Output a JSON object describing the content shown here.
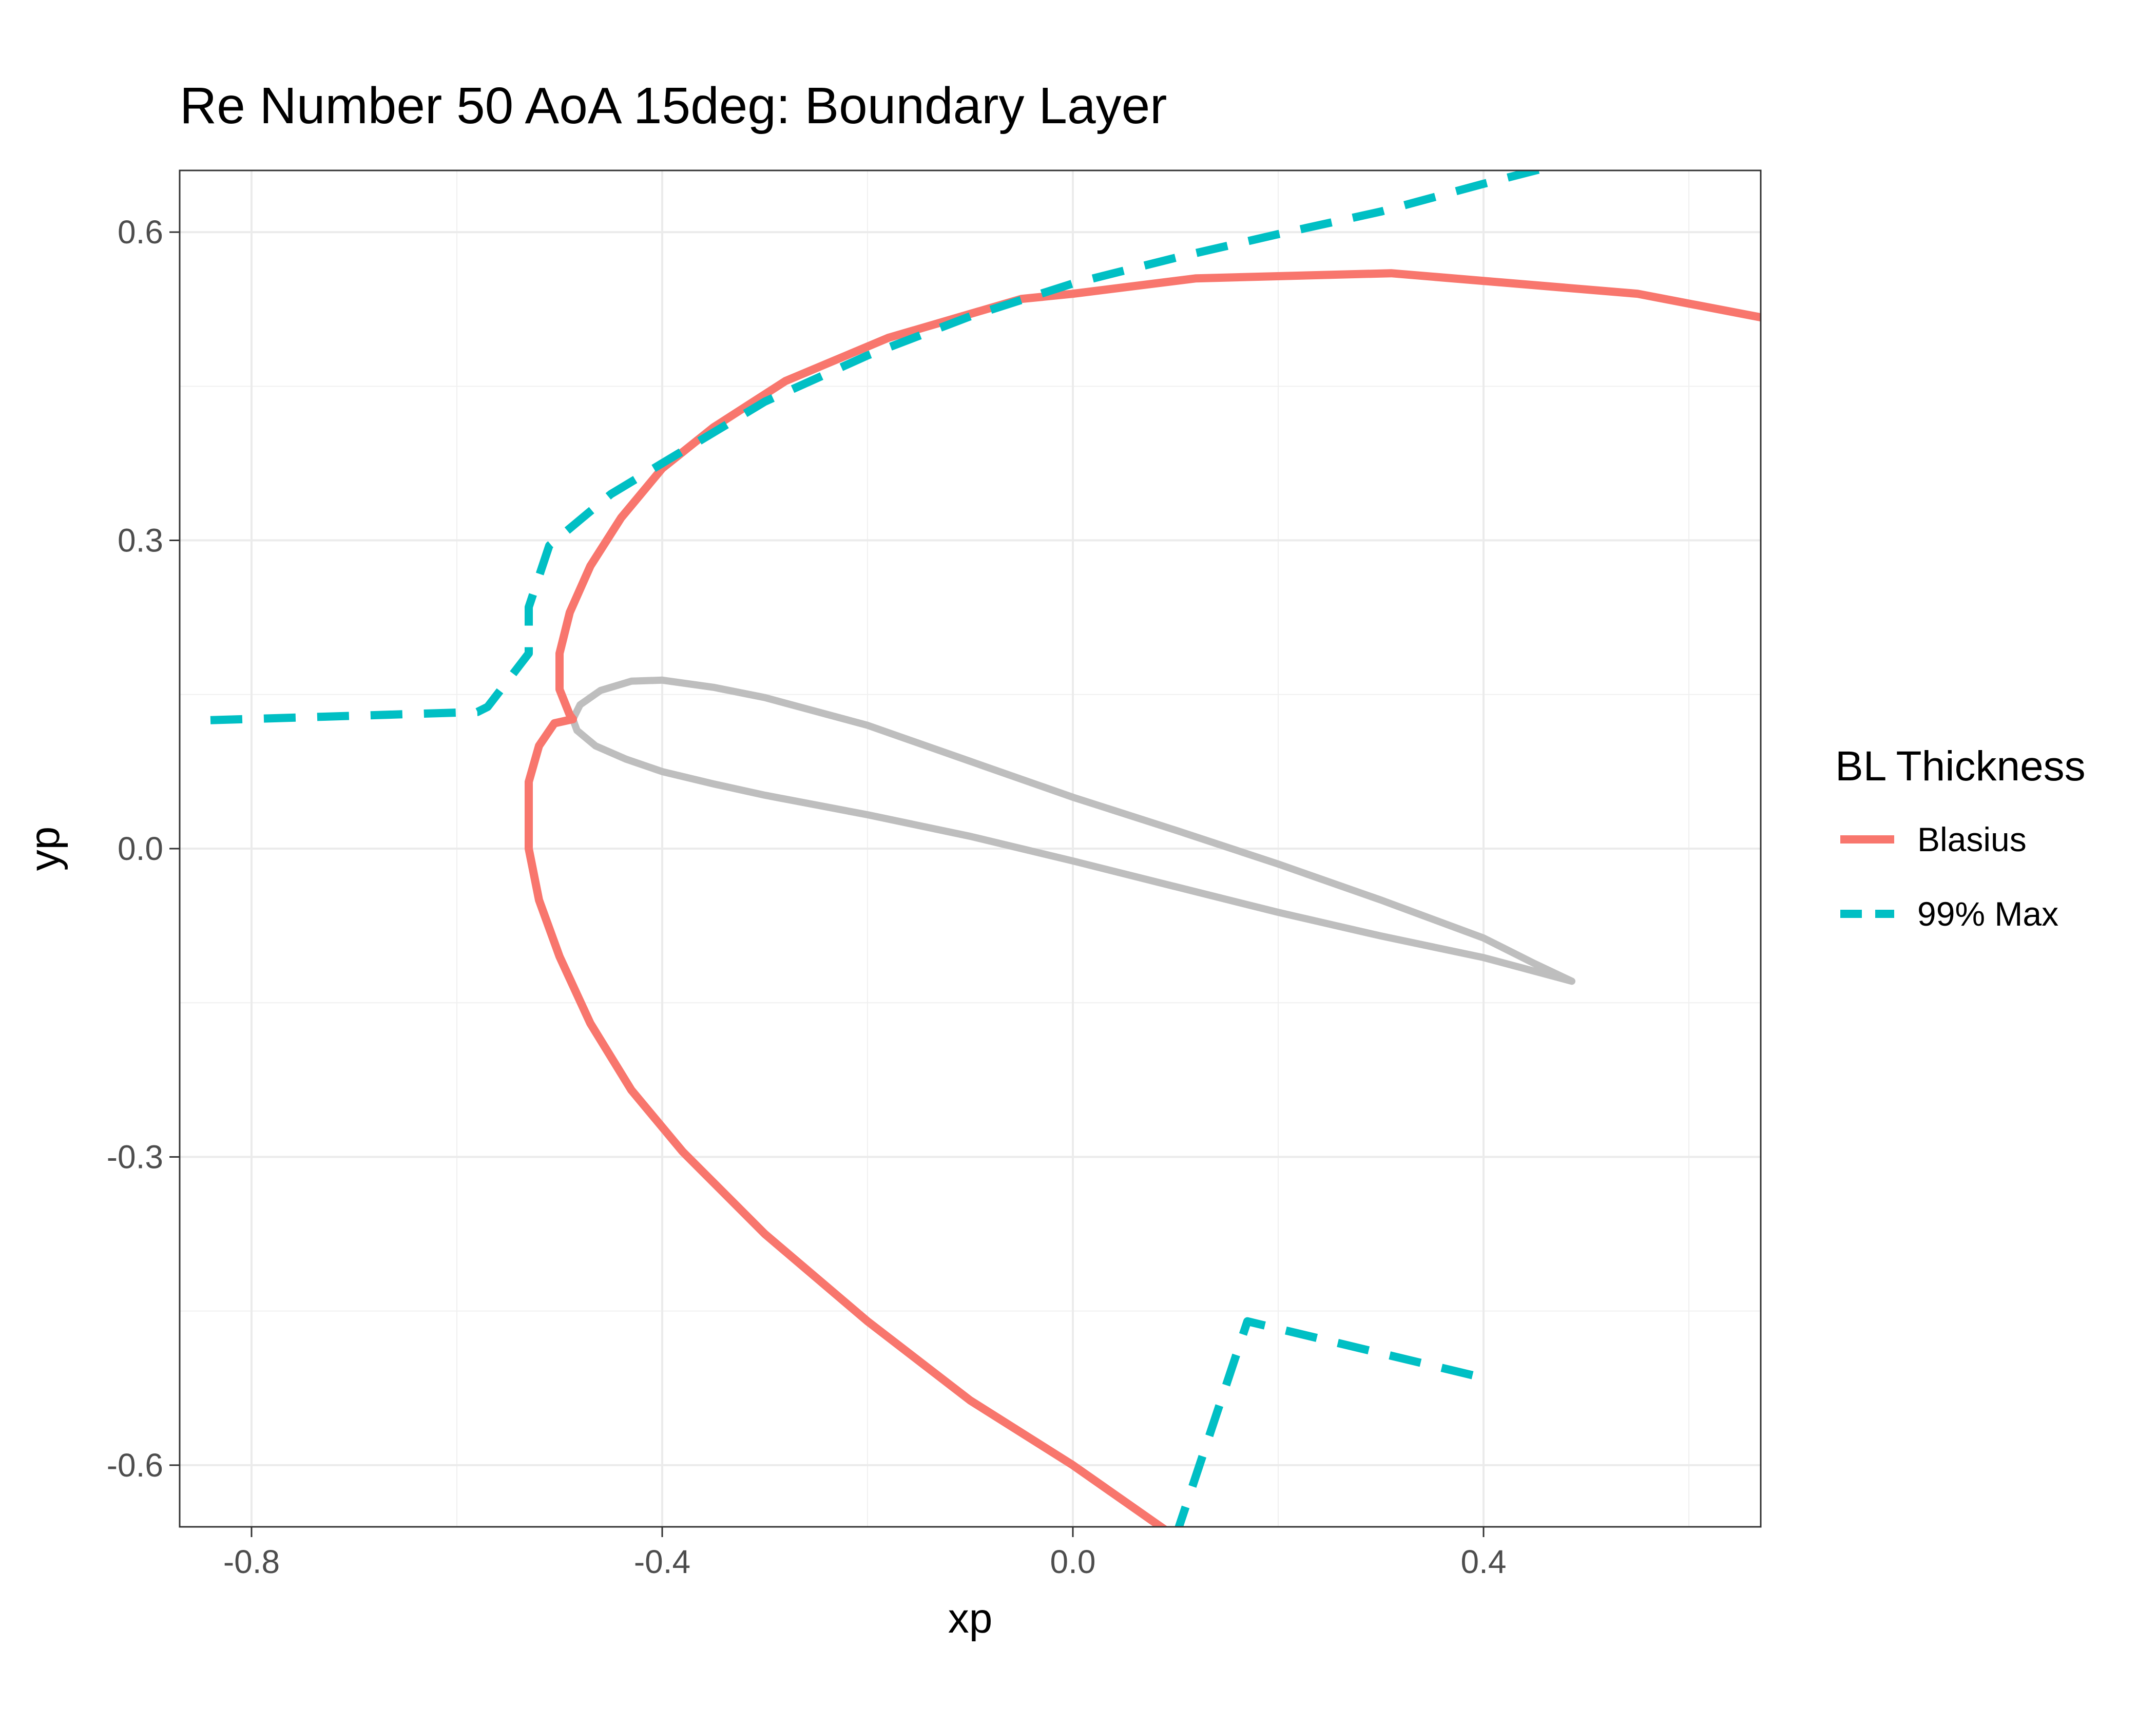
{
  "chart_data": {
    "type": "line",
    "title": "Re Number 50 AoA 15deg: Boundary Layer",
    "xlabel": "xp",
    "ylabel": "yp",
    "xlim": [
      -0.87,
      0.67
    ],
    "ylim": [
      -0.66,
      0.66
    ],
    "x_ticks": [
      -0.8,
      -0.4,
      0.0,
      0.4
    ],
    "x_tick_labels": [
      "-0.8",
      "-0.4",
      "0.0",
      "0.4"
    ],
    "y_ticks": [
      -0.6,
      -0.3,
      0.0,
      0.3,
      0.6
    ],
    "y_tick_labels": [
      "-0.6",
      "-0.3",
      "0.0",
      "0.3",
      "0.6"
    ],
    "grid": true,
    "legend": {
      "title": "BL Thickness",
      "position": "right",
      "entries": [
        {
          "label": "Blasius",
          "color": "#F8766D",
          "dash": "solid"
        },
        {
          "label": "99% Max",
          "color": "#00BFC4",
          "dash": "dashed"
        }
      ]
    },
    "airfoil": {
      "color": "#BEBEBE",
      "points": [
        [
          0.486,
          -0.129
        ],
        [
          0.45,
          -0.112
        ],
        [
          0.4,
          -0.087
        ],
        [
          0.3,
          -0.05
        ],
        [
          0.2,
          -0.015
        ],
        [
          0.1,
          0.018
        ],
        [
          0.0,
          0.05
        ],
        [
          -0.1,
          0.085
        ],
        [
          -0.2,
          0.12
        ],
        [
          -0.3,
          0.147
        ],
        [
          -0.35,
          0.157
        ],
        [
          -0.4,
          0.164
        ],
        [
          -0.43,
          0.163
        ],
        [
          -0.46,
          0.154
        ],
        [
          -0.48,
          0.14
        ],
        [
          -0.487,
          0.126
        ],
        [
          -0.483,
          0.115
        ],
        [
          -0.465,
          0.1
        ],
        [
          -0.435,
          0.087
        ],
        [
          -0.4,
          0.075
        ],
        [
          -0.35,
          0.063
        ],
        [
          -0.3,
          0.052
        ],
        [
          -0.2,
          0.033
        ],
        [
          -0.1,
          0.012
        ],
        [
          0.0,
          -0.012
        ],
        [
          0.1,
          -0.037
        ],
        [
          0.2,
          -0.062
        ],
        [
          0.3,
          -0.085
        ],
        [
          0.4,
          -0.106
        ],
        [
          0.486,
          -0.129
        ]
      ]
    },
    "series": [
      {
        "name": "Blasius",
        "color": "#F8766D",
        "dash": "solid",
        "segments": [
          [
            [
              0.67,
              0.517
            ],
            [
              0.55,
              0.54
            ],
            [
              0.31,
              0.56
            ],
            [
              0.12,
              0.555
            ],
            [
              0.0,
              0.54
            ],
            [
              -0.05,
              0.535
            ],
            [
              -0.18,
              0.497
            ],
            [
              -0.28,
              0.455
            ],
            [
              -0.35,
              0.41
            ],
            [
              -0.4,
              0.37
            ],
            [
              -0.44,
              0.322
            ],
            [
              -0.47,
              0.275
            ],
            [
              -0.49,
              0.23
            ],
            [
              -0.5,
              0.19
            ],
            [
              -0.5,
              0.155
            ],
            [
              -0.49,
              0.13
            ],
            [
              -0.487,
              0.126
            ]
          ],
          [
            [
              -0.487,
              0.126
            ],
            [
              -0.505,
              0.122
            ],
            [
              -0.52,
              0.1
            ],
            [
              -0.53,
              0.065
            ],
            [
              -0.53,
              0.0
            ],
            [
              -0.52,
              -0.05
            ],
            [
              -0.5,
              -0.105
            ],
            [
              -0.47,
              -0.17
            ],
            [
              -0.43,
              -0.235
            ],
            [
              -0.38,
              -0.295
            ],
            [
              -0.3,
              -0.375
            ],
            [
              -0.2,
              -0.46
            ],
            [
              -0.1,
              -0.537
            ],
            [
              0.0,
              -0.6
            ],
            [
              0.1,
              -0.67
            ]
          ]
        ]
      },
      {
        "name": "99% Max",
        "color": "#00BFC4",
        "dash": "dashed",
        "segments": [
          [
            [
              -0.84,
              0.125
            ],
            [
              -0.58,
              0.133
            ],
            [
              -0.57,
              0.138
            ],
            [
              -0.53,
              0.19
            ],
            [
              -0.53,
              0.235
            ],
            [
              -0.51,
              0.295
            ],
            [
              -0.48,
              0.32
            ],
            [
              -0.45,
              0.345
            ],
            [
              -0.4,
              0.375
            ],
            [
              -0.35,
              0.405
            ],
            [
              -0.3,
              0.435
            ],
            [
              -0.2,
              0.48
            ],
            [
              -0.1,
              0.518
            ],
            [
              0.0,
              0.55
            ],
            [
              0.1,
              0.575
            ],
            [
              0.2,
              0.598
            ],
            [
              0.3,
              0.62
            ],
            [
              0.4,
              0.647
            ],
            [
              0.47,
              0.665
            ]
          ],
          [
            [
              0.1,
              -0.67
            ],
            [
              0.17,
              -0.46
            ],
            [
              0.4,
              -0.515
            ]
          ]
        ]
      }
    ]
  }
}
